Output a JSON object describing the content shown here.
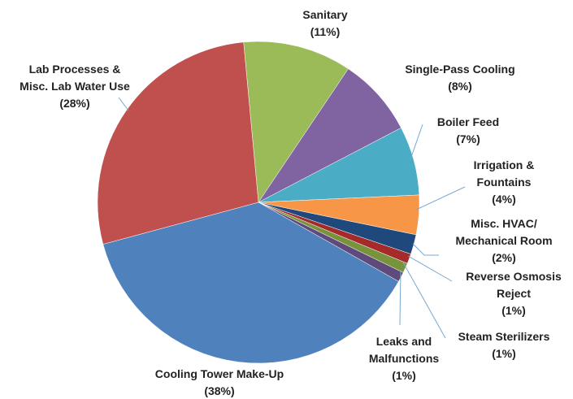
{
  "chart_data": {
    "type": "pie",
    "categories": [
      "Sanitary",
      "Single-Pass Cooling",
      "Boiler Feed",
      "Irrigation &\nFountains",
      "Misc. HVAC/\nMechanical Room",
      "Reverse Osmosis\nReject",
      "Steam Sterilizers",
      "Leaks and\nMalfunctions",
      "Cooling Tower Make-Up",
      "Lab Processes &\nMisc. Lab Water Use"
    ],
    "values": [
      11,
      8,
      7,
      4,
      2,
      1,
      1,
      1,
      38,
      28
    ],
    "value_labels": [
      "(11%)",
      "(8%)",
      "(7%)",
      "(4%)",
      "(2%)",
      "(1%)",
      "(1%)",
      "(1%)",
      "(38%)",
      "(28%)"
    ],
    "colors": [
      "#9bbb59",
      "#8064a2",
      "#4bacc6",
      "#f79646",
      "#1f497d",
      "#a52a2a",
      "#77933c",
      "#604a7b",
      "#4f81bd",
      "#c0504d"
    ]
  }
}
